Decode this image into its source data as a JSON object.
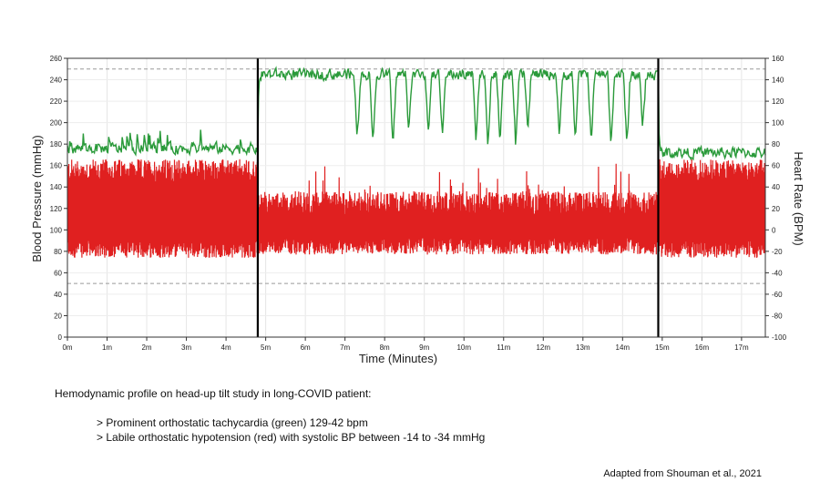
{
  "chart_data": {
    "type": "line",
    "xlabel": "Time (Minutes)",
    "ylabel_left": "Blood Pressure (mmHg)",
    "ylabel_right": "Heart Rate (BPM)",
    "xlim": [
      0,
      17.6
    ],
    "ylim_left": [
      0,
      260
    ],
    "ylim_right": [
      -100,
      160
    ],
    "x_ticks": [
      "0m",
      "1m",
      "2m",
      "3m",
      "4m",
      "5m",
      "6m",
      "7m",
      "8m",
      "9m",
      "10m",
      "11m",
      "12m",
      "13m",
      "14m",
      "15m",
      "16m",
      "17m"
    ],
    "y_left_ticks": [
      0,
      20,
      40,
      60,
      80,
      100,
      120,
      140,
      160,
      180,
      200,
      220,
      240,
      260
    ],
    "y_right_ticks": [
      -100,
      -80,
      -60,
      -40,
      -20,
      0,
      20,
      40,
      60,
      80,
      100,
      120,
      140,
      160
    ],
    "grid": "dashed",
    "dashed_lines_left": [
      50,
      250
    ],
    "event_markers_min": [
      4.8,
      14.9
    ],
    "series": [
      {
        "color": "#2a9a3a",
        "axis": "right",
        "phases": [
          {
            "start": 0,
            "end": 4.8,
            "mean_bpm": 76,
            "range_bpm": [
              65,
              100
            ]
          },
          {
            "start": 4.8,
            "end": 14.9,
            "mean_bpm": 145,
            "range_bpm": [
              72,
              155
            ]
          },
          {
            "start": 14.9,
            "end": 17.6,
            "mean_bpm": 72,
            "range_bpm": [
              60,
              90
            ]
          }
        ]
      },
      {
        "color": "#e02020",
        "axis": "left",
        "phases": [
          {
            "start": 0,
            "end": 4.8,
            "systolic_mmhg": 155,
            "diastolic_mmhg": 82
          },
          {
            "start": 4.8,
            "end": 14.9,
            "systolic_mmhg": 125,
            "diastolic_mmhg": 85
          },
          {
            "start": 14.9,
            "end": 17.6,
            "systolic_mmhg": 155,
            "diastolic_mmhg": 82
          }
        ]
      }
    ],
    "dips_min": [
      7.3,
      7.7,
      8.2,
      8.6,
      9.1,
      9.45,
      10.3,
      10.6,
      10.9,
      11.3,
      11.6,
      12.4,
      12.8,
      13.2,
      13.7,
      14.1,
      14.5
    ]
  },
  "captions": {
    "title": "Hemodynamic profile on head-up tilt study in long-COVID patient:",
    "bullet1": "> Prominent orthostatic tachycardia (green) 129-42 bpm",
    "bullet2": "> Labile orthostatic hypotension (red) with systolic BP between -14 to -34 mmHg",
    "source": "Adapted from Shouman et al., 2021"
  }
}
